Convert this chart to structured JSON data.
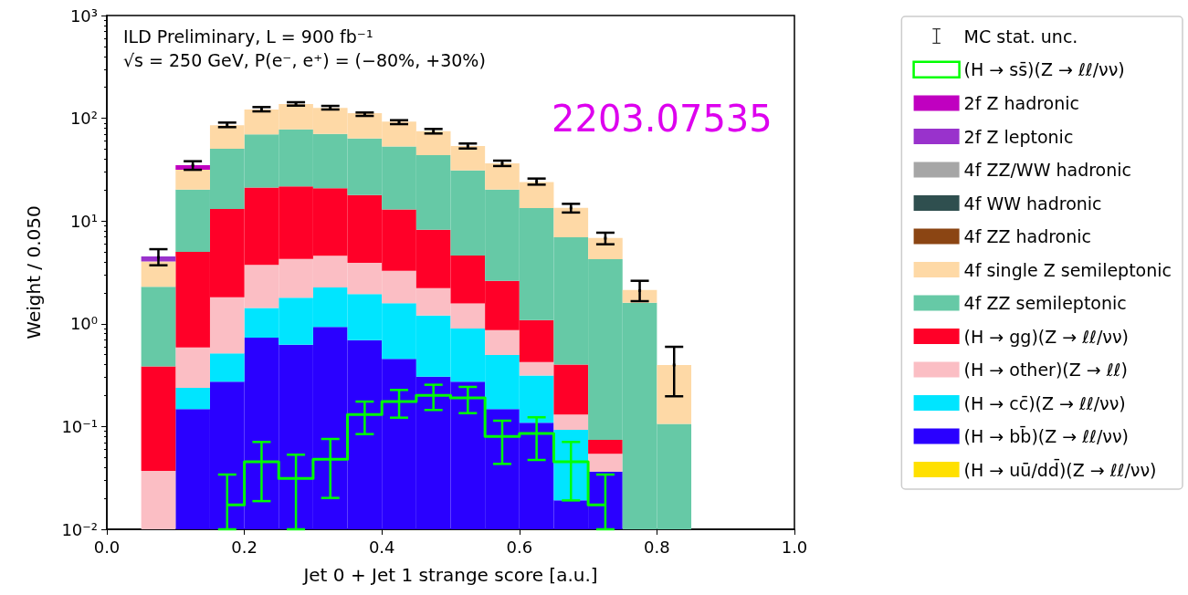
{
  "chart_data": {
    "type": "bar",
    "xlabel": "Jet 0 + Jet 1 strange score [a.u.]",
    "ylabel": "Weight / 0.050",
    "annotations": [
      "ILD Preliminary, L = 900 fb⁻¹",
      "√s = 250 GeV, P(e⁻, e⁺) = (−80%, +30%)",
      "2203.07535"
    ],
    "x": [
      0.075,
      0.125,
      0.175,
      0.225,
      0.275,
      0.325,
      0.375,
      0.425,
      0.475,
      0.525,
      0.575,
      0.625,
      0.675,
      0.725,
      0.775,
      0.825
    ],
    "stacked": true,
    "log": "y",
    "legend": "right",
    "grid": false,
    "xlim": [
      0,
      1
    ],
    "xticks": [
      {
        "value": 0,
        "label": "0.0"
      },
      0.2,
      0.4,
      0.6,
      0.8,
      {
        "value": 1,
        "label": "1.0"
      }
    ],
    "ylim": [
      0.01,
      1000
    ],
    "yticks": [
      {
        "value": 0.01,
        "label": "10⁻²"
      },
      {
        "value": 0.1,
        "label": "10⁻¹"
      },
      {
        "value": 1,
        "label": "10⁰"
      },
      {
        "value": 10,
        "label": "10¹"
      },
      {
        "value": 100,
        "label": "10²"
      },
      {
        "value": 1000,
        "label": "10³"
      }
    ],
    "series": [
      {
        "name": "MC stat. unc.",
        "type": "scatter",
        "color": "#000000",
        "values": [
          4.43,
          34.9,
          86,
          122,
          137.6,
          126,
          109.9,
          91.7,
          74.8,
          53.7,
          36.4,
          24.2,
          13.4,
          6.8,
          2.1,
          0.397
        ],
        "errors": [
          [
            3.71,
            5.32
          ],
          [
            31.5,
            38.2
          ],
          [
            82.0,
            90.8
          ],
          [
            116.7,
            128.5
          ],
          [
            132.8,
            143.3
          ],
          [
            121.7,
            132
          ],
          [
            105.4,
            113.8
          ],
          [
            87.7,
            95.8
          ],
          [
            71.1,
            78.7
          ],
          [
            50.8,
            56.8
          ],
          [
            34.3,
            38.7
          ],
          [
            22.6,
            25.9
          ],
          [
            12.1,
            14.7
          ],
          [
            5.94,
            7.7
          ],
          [
            1.66,
            2.62
          ],
          [
            0.197,
            0.597
          ]
        ]
      },
      {
        "name": "(H → ss̄)(Z → ℓℓ/νν)",
        "type": "step",
        "color": "#00ff00",
        "values": [
          null,
          null,
          0.0173,
          0.0454,
          0.0313,
          0.048,
          0.1307,
          0.175,
          0.201,
          0.19,
          0.08,
          0.0857,
          0.0454,
          0.0173,
          null,
          null
        ],
        "errors": [
          null,
          null,
          [
            0.01,
            0.0341
          ],
          [
            0.0188,
            0.0708
          ],
          [
            0.01,
            0.0532
          ],
          [
            0.0202,
            0.0757
          ],
          [
            0.0844,
            0.175
          ],
          [
            0.122,
            0.227
          ],
          [
            0.145,
            0.255
          ],
          [
            0.135,
            0.243
          ],
          [
            0.0433,
            0.114
          ],
          [
            0.0473,
            0.123
          ],
          [
            0.0191,
            0.0708
          ],
          [
            0.01,
            0.0341
          ],
          null,
          null
        ]
      },
      {
        "name": "(H → uū/dd̄)(Z → ℓℓ/νν)",
        "color": "#ffe000",
        "values": [
          null,
          null,
          null,
          null,
          null,
          null,
          null,
          null,
          null,
          null,
          null,
          null,
          null,
          null,
          null,
          null
        ]
      },
      {
        "name": "(H → bb̄)(Z → ℓℓ/νν)",
        "color": "#2a00ff",
        "values": [
          null,
          0.148,
          0.273,
          0.733,
          0.627,
          0.931,
          0.693,
          0.455,
          0.306,
          0.273,
          0.148,
          0.109,
          0.0191,
          0.0365,
          null,
          null
        ]
      },
      {
        "name": "(H → cc̄)(Z → ℓℓ/νν)",
        "color": "#00e5ff",
        "values": [
          null,
          0.09,
          0.241,
          0.69,
          1.17,
          1.33,
          1.25,
          1.13,
          0.9,
          0.627,
          0.349,
          0.204,
          0.074,
          null,
          null,
          null
        ]
      },
      {
        "name": "(H → other)(Z → ℓℓ)",
        "color": "#fbbec4",
        "values": [
          0.037,
          0.351,
          1.3,
          2.32,
          2.48,
          2.33,
          1.98,
          1.7,
          1.02,
          0.68,
          0.372,
          0.112,
          0.038,
          0.0177,
          null,
          null
        ]
      },
      {
        "name": "(H → gg)(Z → ℓℓ/νν)",
        "color": "#ff0028",
        "values": [
          0.347,
          4.42,
          11.3,
          17.4,
          17.5,
          16.3,
          14.0,
          9.7,
          6.0,
          3.03,
          1.75,
          0.66,
          0.27,
          0.02,
          null,
          null
        ]
      },
      {
        "name": "4f ZZ semileptonic",
        "color": "#66c9a6",
        "values": [
          1.91,
          15.2,
          37.4,
          48.6,
          56.4,
          49.7,
          45.8,
          40.3,
          35.6,
          26.5,
          17.6,
          12.3,
          6.55,
          4.18,
          1.6,
          0.106
        ]
      },
      {
        "name": "4f single Z semileptonic",
        "color": "#fed9a6",
        "values": [
          1.74,
          11.3,
          35,
          51.9,
          59.4,
          55.5,
          48.3,
          39.4,
          31.2,
          22.6,
          16.2,
          10.6,
          6.5,
          2.6,
          0.53,
          0.29
        ]
      },
      {
        "name": "4f ZZ hadronic",
        "color": "#8b4513",
        "values": [
          null,
          null,
          null,
          null,
          null,
          null,
          null,
          null,
          null,
          null,
          null,
          null,
          null,
          null,
          null,
          null
        ]
      },
      {
        "name": "4f WW hadronic",
        "color": "#2f4f4f",
        "values": [
          null,
          null,
          null,
          null,
          null,
          null,
          null,
          null,
          null,
          null,
          null,
          null,
          null,
          null,
          null,
          null
        ]
      },
      {
        "name": "4f ZZ/WW hadronic",
        "color": "#a6a6a6",
        "values": [
          null,
          null,
          null,
          null,
          null,
          null,
          null,
          null,
          null,
          null,
          null,
          null,
          null,
          null,
          null,
          null
        ]
      },
      {
        "name": "2f Z leptonic",
        "color": "#9932cc",
        "values": [
          0.49,
          null,
          null,
          null,
          null,
          null,
          null,
          null,
          null,
          null,
          null,
          null,
          null,
          null,
          null,
          null
        ]
      },
      {
        "name": "2f Z hadronic",
        "color": "#c000c0",
        "values": [
          null,
          3.4,
          null,
          null,
          null,
          null,
          null,
          null,
          null,
          null,
          null,
          null,
          null,
          null,
          null,
          null
        ]
      }
    ]
  }
}
